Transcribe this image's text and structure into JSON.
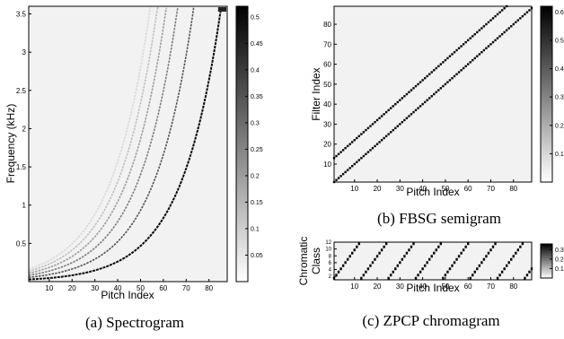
{
  "chart_data": [
    {
      "type": "heatmap",
      "xlabel": "Pitch Index",
      "ylabel": "Frequency (kHz)",
      "xlim": [
        1,
        88
      ],
      "ylim": [
        0,
        3.6
      ],
      "xticks": [
        "10",
        "20",
        "30",
        "40",
        "50",
        "60",
        "70",
        "80"
      ],
      "yticks": [
        "0.5",
        "1",
        "1.5",
        "2",
        "2.5",
        "3",
        "3.5"
      ],
      "colorbar_ticks": [
        "0.05",
        "0.1",
        "0.15",
        "0.2",
        "0.25",
        "0.3",
        "0.35",
        "0.4",
        "0.45",
        "0.5"
      ],
      "colorbar_range": [
        0,
        0.52
      ],
      "colormap": "gray_reversed",
      "harmonics": [
        1,
        2,
        3,
        4,
        5,
        6
      ],
      "harmonic_intensity": [
        0.5,
        0.35,
        0.27,
        0.2,
        0.13,
        0.08
      ],
      "caption": "(a) Spectrogram"
    },
    {
      "type": "heatmap",
      "xlabel": "Pitch Index",
      "ylabel": "Filter Index",
      "xlim": [
        1,
        88
      ],
      "ylim": [
        1,
        89
      ],
      "xticks": [
        "10",
        "20",
        "30",
        "40",
        "50",
        "60",
        "70",
        "80"
      ],
      "yticks": [
        "10",
        "20",
        "30",
        "40",
        "50",
        "60",
        "70",
        "80"
      ],
      "colorbar_ticks": [
        "0.1",
        "0.2",
        "0.3",
        "0.4",
        "0.5",
        "0.6"
      ],
      "colorbar_range": [
        0,
        0.62
      ],
      "colormap": "gray_reversed",
      "diagonal_offsets": [
        0,
        12
      ],
      "diagonal_value": 0.6,
      "caption": "(b) FBSG semigram"
    },
    {
      "type": "heatmap",
      "xlabel": "Pitch Index",
      "ylabel_lines": [
        "Chromatic",
        "Class"
      ],
      "xlim": [
        1,
        88
      ],
      "ylim": [
        1,
        12
      ],
      "xticks": [
        "10",
        "20",
        "30",
        "40",
        "50",
        "60",
        "70",
        "80"
      ],
      "yticks": [
        "2",
        "4",
        "6",
        "8",
        "10",
        "12"
      ],
      "colorbar_ticks": [
        "0.1",
        "0.2",
        "0.3"
      ],
      "colorbar_range": [
        0,
        0.36
      ],
      "colormap": "gray_reversed",
      "chroma_period": 12,
      "chroma_value": 0.35,
      "caption": "(c) ZPCP chromagram"
    }
  ]
}
